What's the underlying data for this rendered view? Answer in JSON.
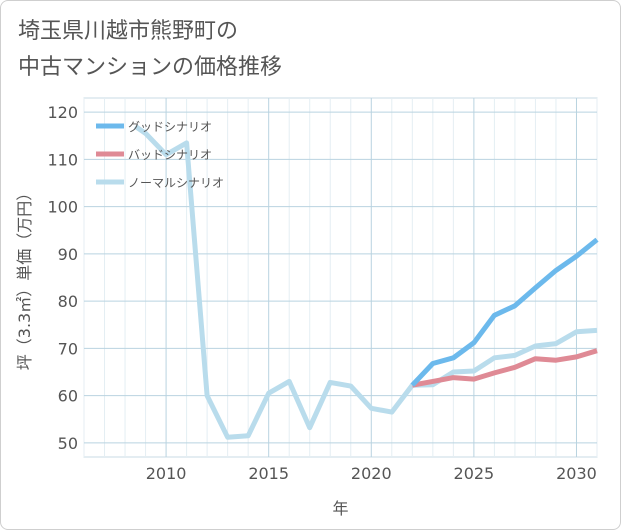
{
  "chart_data": {
    "type": "line",
    "title_lines": [
      "埼玉県川越市熊野町の",
      "中古マンションの価格推移"
    ],
    "xlabel": "年",
    "ylabel": "坪（3.3㎡）単価（万円）",
    "xlim": [
      2006,
      2031
    ],
    "ylim": [
      47,
      123
    ],
    "x_ticks": [
      2010,
      2015,
      2020,
      2025,
      2030
    ],
    "y_ticks": [
      50,
      60,
      70,
      80,
      90,
      100,
      110,
      120
    ],
    "grid": true,
    "legend_position": "top-left",
    "series": [
      {
        "name": "グッドシナリオ",
        "color": "#6cb9ec",
        "x": [
          2022,
          2023,
          2024,
          2025,
          2026,
          2027,
          2028,
          2029,
          2030,
          2031
        ],
        "y": [
          62.2,
          66.8,
          68.0,
          71.2,
          77.0,
          79.0,
          82.8,
          86.5,
          89.5,
          93.0
        ]
      },
      {
        "name": "バッドシナリオ",
        "color": "#df8a95",
        "x": [
          2022,
          2023,
          2024,
          2025,
          2026,
          2027,
          2028,
          2029,
          2030,
          2031
        ],
        "y": [
          62.2,
          63.0,
          63.8,
          63.5,
          64.8,
          66.0,
          67.8,
          67.5,
          68.2,
          69.5
        ]
      },
      {
        "name": "ノーマルシナリオ",
        "color": "#b9dcec",
        "x": [
          2008.5,
          2009,
          2010,
          2011,
          2012,
          2013,
          2014,
          2015,
          2016,
          2017,
          2018,
          2019,
          2020,
          2021,
          2022,
          2023,
          2024,
          2025,
          2026,
          2027,
          2028,
          2029,
          2030,
          2031
        ],
        "y": [
          117.0,
          115.5,
          111.0,
          113.5,
          60.0,
          51.2,
          51.5,
          60.5,
          63.0,
          53.2,
          62.8,
          62.0,
          57.3,
          56.5,
          62.2,
          62.3,
          65.0,
          65.2,
          68.0,
          68.5,
          70.5,
          71.0,
          73.5,
          73.8
        ]
      }
    ]
  }
}
